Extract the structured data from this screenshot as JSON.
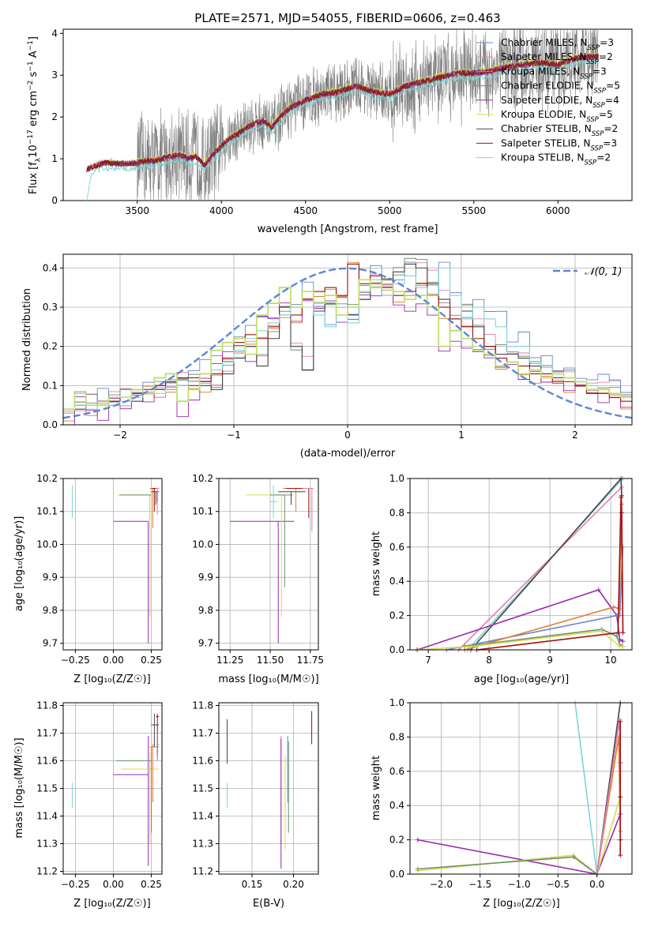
{
  "figure_title": "PLATE=2571, MJD=54055, FIBERID=0606, z=0.463",
  "colors": {
    "Chabrier MILES": "#6a86c8",
    "Salpeter MILES": "#e87cb1",
    "Kroupa MILES": "#e0802b",
    "Chabrier ELODIE": "#6b8e6b",
    "Salpeter ELODIE": "#9a27b0",
    "Kroupa ELODIE": "#d6dc4a",
    "Chabrier STELIB": "#454545",
    "Salpeter STELIB": "#a01010",
    "Kroupa STELIB": "#7fd6d6",
    "data": "#808080",
    "gauss": "#5b86d6",
    "lightgreen": "#bfe06a"
  },
  "panel_spectrum": {
    "xlabel": "wavelength [Angstrom, rest frame]",
    "ylabel_main": "Flux [f",
    "ylabel_sub": "λ",
    "ylabel_rest": "10",
    "ylabel_exp": "−17",
    "ylabel_units": " erg cm",
    "ylabel_exp2": "−2",
    "ylabel_s": " s",
    "ylabel_exp3": "−1",
    "ylabel_A": " A",
    "ylabel_exp4": "−1",
    "ylabel_end": "]",
    "xticks": [
      "3500",
      "4000",
      "4500",
      "5000",
      "5500",
      "6000"
    ],
    "yticks": [
      "0",
      "1",
      "2",
      "3",
      "4"
    ],
    "legend": [
      {
        "pre": "Chabrier MILES, N",
        "sub": "SSP",
        "post": "=3"
      },
      {
        "pre": "Salpeter MILES, N",
        "sub": "SSP",
        "post": "=2"
      },
      {
        "pre": "Kroupa MILES, N",
        "sub": "SSP",
        "post": "=3"
      },
      {
        "pre": "Chabrier ELODIE, N",
        "sub": "SSP",
        "post": "=5"
      },
      {
        "pre": "Salpeter ELODIE, N",
        "sub": "SSP",
        "post": "=4"
      },
      {
        "pre": "Kroupa ELODIE, N",
        "sub": "SSP",
        "post": "=5"
      },
      {
        "pre": "Chabrier STELIB, N",
        "sub": "SSP",
        "post": "=2"
      },
      {
        "pre": "Salpeter STELIB, N",
        "sub": "SSP",
        "post": "=3"
      },
      {
        "pre": "Kroupa STELIB, N",
        "sub": "SSP",
        "post": "=2"
      }
    ]
  },
  "panel_hist": {
    "xlabel": "(data-model)/error",
    "ylabel": "Normed distribution",
    "xticks": [
      "−2",
      "−1",
      "0",
      "1",
      "2"
    ],
    "yticks": [
      "0.0",
      "0.1",
      "0.2",
      "0.3",
      "0.4"
    ],
    "legend_label": "𝒩(0, 1)"
  },
  "panel_z_age": {
    "xlabel": "Z [log₁₀(Z/Z☉)]",
    "ylabel": "age  [log₁₀(age/yr)]",
    "xticks": [
      "−0.25",
      "0.00",
      "0.25"
    ],
    "yticks": [
      "9.7",
      "9.8",
      "9.9",
      "10.0",
      "10.1",
      "10.2"
    ]
  },
  "panel_mass_age": {
    "xlabel": "mass [log₁₀(M/M☉)]",
    "xticks": [
      "11.25",
      "11.50",
      "11.75"
    ],
    "yticks": [
      "9.7",
      "9.8",
      "9.9",
      "10.0",
      "10.1",
      "10.2"
    ]
  },
  "panel_age_w": {
    "xlabel": "age  [log₁₀(age/yr)]",
    "ylabel": "mass weight",
    "xticks": [
      "7",
      "8",
      "9",
      "10"
    ],
    "yticks": [
      "0.0",
      "0.2",
      "0.4",
      "0.6",
      "0.8",
      "1.0"
    ]
  },
  "panel_z_mass": {
    "xlabel": "Z [log₁₀(Z/Z☉)]",
    "ylabel": "mass [log₁₀(M/M☉)]",
    "xticks": [
      "−0.25",
      "0.00",
      "0.25"
    ],
    "yticks": [
      "11.2",
      "11.3",
      "11.4",
      "11.5",
      "11.6",
      "11.7",
      "11.8"
    ]
  },
  "panel_ebv_mass": {
    "xlabel": "E(B-V)",
    "xticks": [
      "0.15",
      "0.20"
    ],
    "yticks": [
      "11.2",
      "11.3",
      "11.4",
      "11.5",
      "11.6",
      "11.7",
      "11.8"
    ]
  },
  "panel_z_w": {
    "xlabel": "Z [log₁₀(Z/Z☉)]",
    "ylabel": "mass weight",
    "xticks": [
      "−2.0",
      "−1.5",
      "−1.0",
      "−0.5",
      "0.0"
    ],
    "yticks": [
      "0.0",
      "0.2",
      "0.4",
      "0.6",
      "0.8",
      "1.0"
    ]
  },
  "chart_data": [
    {
      "type": "line",
      "title": "PLATE=2571, MJD=54055, FIBERID=0606, z=0.463",
      "xlabel": "wavelength [Angstrom, rest frame]",
      "ylabel": "Flux [fλ 10^-17 erg cm^-2 s^-1 A^-1]",
      "xlim": [
        3060,
        6440
      ],
      "ylim": [
        0,
        4.1
      ],
      "model_continuum": {
        "x": [
          3200,
          3300,
          3400,
          3500,
          3550,
          3600,
          3650,
          3700,
          3750,
          3800,
          3850,
          3900,
          3950,
          4000,
          4050,
          4100,
          4150,
          4200,
          4250,
          4300,
          4350,
          4400,
          4500,
          4600,
          4700,
          4800,
          4900,
          5000,
          5100,
          5200,
          5300,
          5400,
          5500,
          5600,
          5700,
          5800,
          5900,
          6000,
          6100,
          6200
        ],
        "y": [
          0.75,
          0.9,
          0.88,
          0.9,
          0.95,
          0.95,
          1.0,
          1.05,
          1.1,
          1.0,
          1.05,
          0.85,
          1.1,
          1.3,
          1.5,
          1.6,
          1.75,
          1.85,
          1.9,
          1.75,
          2.0,
          2.2,
          2.4,
          2.55,
          2.6,
          2.75,
          2.6,
          2.55,
          2.75,
          2.85,
          2.95,
          3.05,
          3.05,
          3.1,
          3.2,
          3.25,
          3.3,
          3.25,
          3.4,
          3.45
        ]
      },
      "series": [
        {
          "name": "Chabrier MILES, N_SSP=3"
        },
        {
          "name": "Salpeter MILES, N_SSP=2"
        },
        {
          "name": "Kroupa MILES, N_SSP=3"
        },
        {
          "name": "Chabrier ELODIE, N_SSP=5"
        },
        {
          "name": "Salpeter ELODIE, N_SSP=4"
        },
        {
          "name": "Kroupa ELODIE, N_SSP=5"
        },
        {
          "name": "Chabrier STELIB, N_SSP=2"
        },
        {
          "name": "Salpeter STELIB, N_SSP=3"
        },
        {
          "name": "Kroupa STELIB, N_SSP=2"
        }
      ]
    },
    {
      "type": "line",
      "xlabel": "(data-model)/error",
      "ylabel": "Normed distribution",
      "xlim": [
        -2.5,
        2.5
      ],
      "ylim": [
        0,
        0.435
      ],
      "bin_edges": [
        -2.5,
        -2.4,
        -2.3,
        -2.2,
        -2.1,
        -2.0,
        -1.9,
        -1.8,
        -1.7,
        -1.6,
        -1.5,
        -1.4,
        -1.3,
        -1.2,
        -1.1,
        -1.0,
        -0.9,
        -0.8,
        -0.7,
        -0.6,
        -0.5,
        -0.4,
        -0.3,
        -0.2,
        -0.1,
        0.0,
        0.1,
        0.2,
        0.3,
        0.4,
        0.5,
        0.6,
        0.7,
        0.8,
        0.9,
        1.0,
        1.1,
        1.2,
        1.3,
        1.4,
        1.5,
        1.6,
        1.7,
        1.8,
        1.9,
        2.0,
        2.1,
        2.2,
        2.3,
        2.4,
        2.5
      ],
      "histograms": [
        {
          "name": "Chabrier STELIB",
          "values": [
            0.04,
            0.04,
            0.05,
            0.05,
            0.06,
            0.07,
            0.06,
            0.08,
            0.09,
            0.09,
            0.1,
            0.1,
            0.1,
            0.09,
            0.13,
            0.17,
            0.2,
            0.15,
            0.22,
            0.28,
            0.2,
            0.14,
            0.29,
            0.31,
            0.3,
            0.28,
            0.32,
            0.36,
            0.35,
            0.39,
            0.41,
            0.4,
            0.36,
            0.32,
            0.27,
            0.29,
            0.25,
            0.2,
            0.18,
            0.18,
            0.17,
            0.15,
            0.13,
            0.12,
            0.12,
            0.1,
            0.09,
            0.09,
            0.08,
            0.07
          ]
        },
        {
          "name": "Salpeter STELIB",
          "values": [
            0.04,
            0.05,
            0.05,
            0.06,
            0.06,
            0.07,
            0.08,
            0.09,
            0.1,
            0.11,
            0.12,
            0.12,
            0.11,
            0.13,
            0.17,
            0.21,
            0.23,
            0.22,
            0.25,
            0.3,
            0.28,
            0.32,
            0.34,
            0.35,
            0.33,
            0.41,
            0.36,
            0.38,
            0.37,
            0.33,
            0.34,
            0.36,
            0.33,
            0.3,
            0.27,
            0.25,
            0.22,
            0.2,
            0.17,
            0.16,
            0.15,
            0.13,
            0.13,
            0.11,
            0.11,
            0.1,
            0.08,
            0.08,
            0.07,
            0.06
          ]
        },
        {
          "name": "Kroupa STELIB",
          "values": [
            0.04,
            0.05,
            0.04,
            0.06,
            0.05,
            0.06,
            0.07,
            0.08,
            0.08,
            0.09,
            0.1,
            0.11,
            0.13,
            0.14,
            0.16,
            0.19,
            0.22,
            0.24,
            0.26,
            0.28,
            0.3,
            0.34,
            0.28,
            0.25,
            0.3,
            0.26,
            0.34,
            0.37,
            0.33,
            0.36,
            0.38,
            0.35,
            0.33,
            0.4,
            0.33,
            0.27,
            0.3,
            0.27,
            0.25,
            0.2,
            0.2,
            0.16,
            0.15,
            0.13,
            0.12,
            0.11,
            0.1,
            0.09,
            0.08,
            0.07
          ]
        },
        {
          "name": "Kroupa ELODIE",
          "values": [
            0.04,
            0.08,
            0.05,
            0.05,
            0.07,
            0.07,
            0.09,
            0.08,
            0.12,
            0.13,
            0.06,
            0.09,
            0.13,
            0.19,
            0.21,
            0.22,
            0.18,
            0.28,
            0.31,
            0.35,
            0.3,
            0.34,
            0.31,
            0.33,
            0.28,
            0.3,
            0.37,
            0.35,
            0.36,
            0.34,
            0.32,
            0.33,
            0.3,
            0.2,
            0.24,
            0.22,
            0.19,
            0.18,
            0.15,
            0.16,
            0.13,
            0.14,
            0.12,
            0.13,
            0.12,
            0.11,
            0.09,
            0.09,
            0.08,
            0.07
          ]
        }
      ],
      "gaussian": {
        "name": "𝒩(0, 1)",
        "mu": 0,
        "sigma": 1
      }
    },
    {
      "type": "scatter",
      "xlabel": "Z [log10(Z/Z_sun)]",
      "ylabel": "age [log10(age/yr)]",
      "xlim": [
        -0.33,
        0.32
      ],
      "ylim": [
        9.68,
        10.2
      ]
    },
    {
      "type": "scatter",
      "xlabel": "mass [log10(M/M_sun)]",
      "xlim": [
        11.18,
        11.8
      ],
      "ylim": [
        9.68,
        10.2
      ]
    },
    {
      "type": "line",
      "xlabel": "age [log10(age/yr)]",
      "ylabel": "mass weight",
      "xlim": [
        6.7,
        10.35
      ],
      "ylim": [
        0,
        1.0
      ]
    },
    {
      "type": "scatter",
      "xlabel": "Z [log10(Z/Z_sun)]",
      "ylabel": "mass [log10(M/M_sun)]",
      "xlim": [
        -0.33,
        0.32
      ],
      "ylim": [
        11.19,
        11.81
      ]
    },
    {
      "type": "scatter",
      "xlabel": "E(B-V)",
      "xlim": [
        0.11,
        0.23
      ],
      "ylim": [
        11.19,
        11.81
      ]
    },
    {
      "type": "line",
      "xlabel": "Z [log10(Z/Z_sun)]",
      "ylabel": "mass weight",
      "xlim": [
        -2.4,
        0.45
      ],
      "ylim": [
        0,
        1.0
      ]
    }
  ]
}
